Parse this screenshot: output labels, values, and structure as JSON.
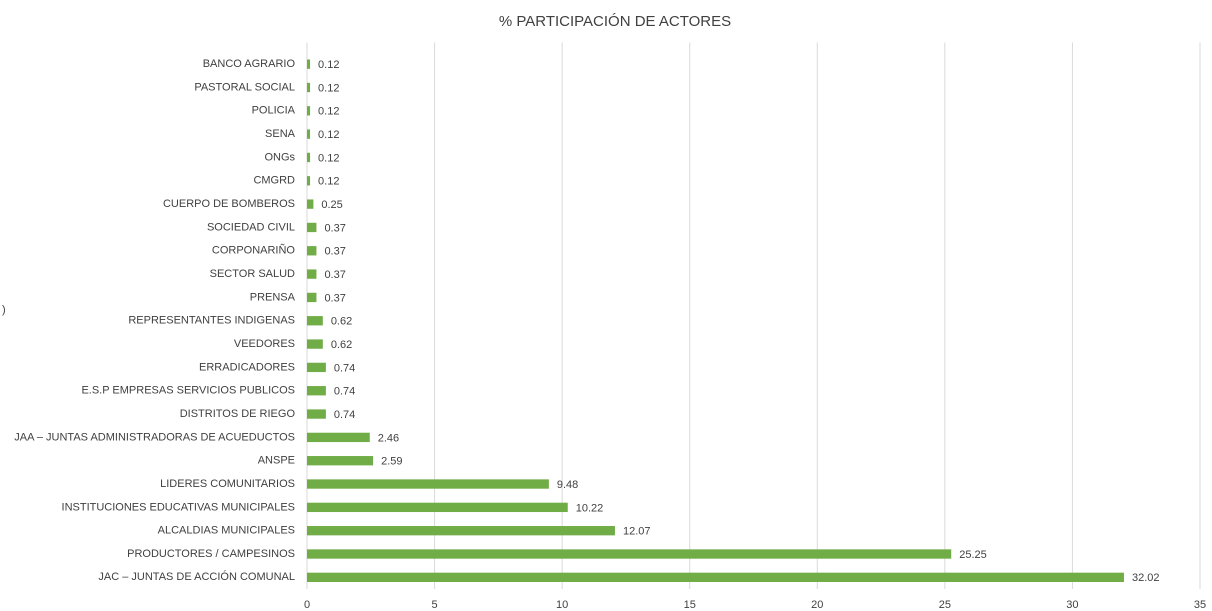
{
  "chart_data": {
    "type": "bar",
    "orientation": "horizontal",
    "title": "% PARTICIPACIÓN DE ACTORES",
    "annotation": ")",
    "categories": [
      "BANCO AGRARIO",
      "PASTORAL SOCIAL",
      "POLICIA",
      "SENA",
      "ONGs",
      "CMGRD",
      "CUERPO DE BOMBEROS",
      "SOCIEDAD CIVIL",
      "CORPONARIÑO",
      "SECTOR SALUD",
      "PRENSA",
      "REPRESENTANTES INDIGENAS",
      "VEEDORES",
      "ERRADICADORES",
      "E.S.P EMPRESAS SERVICIOS PUBLICOS",
      "DISTRITOS DE RIEGO",
      "JAA – JUNTAS ADMINISTRADORAS DE ACUEDUCTOS",
      "ANSPE",
      "LIDERES COMUNITARIOS",
      "INSTITUCIONES EDUCATIVAS MUNICIPALES",
      "ALCALDIAS MUNICIPALES",
      "PRODUCTORES / CAMPESINOS",
      "JAC – JUNTAS DE ACCIÓN COMUNAL"
    ],
    "values": [
      0.12,
      0.12,
      0.12,
      0.12,
      0.12,
      0.12,
      0.25,
      0.37,
      0.37,
      0.37,
      0.37,
      0.62,
      0.62,
      0.74,
      0.74,
      0.74,
      2.46,
      2.59,
      9.48,
      10.22,
      12.07,
      25.25,
      32.02
    ],
    "color": "#70ad47",
    "xlim": [
      0,
      35
    ],
    "xticks": [
      0,
      5,
      10,
      15,
      20,
      25,
      30,
      35
    ],
    "grid": true
  }
}
